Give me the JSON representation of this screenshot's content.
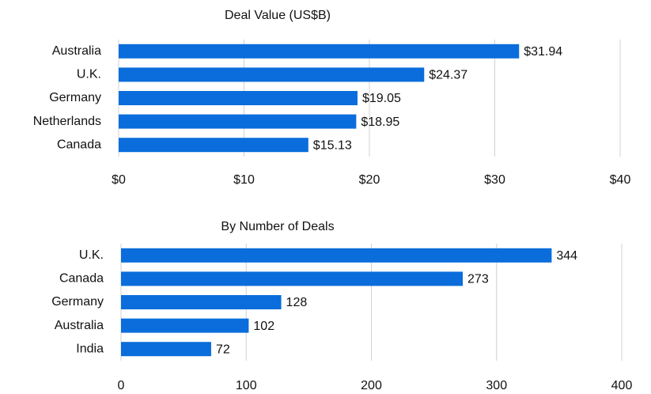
{
  "chart_data": [
    {
      "type": "bar",
      "orientation": "horizontal",
      "title": "Deal Value (US$B)",
      "categories": [
        "Australia",
        "U.K.",
        "Germany",
        "Netherlands",
        "Canada"
      ],
      "values": [
        31.94,
        24.37,
        19.05,
        18.95,
        15.13
      ],
      "value_labels": [
        "$31.94",
        "$24.37",
        "$19.05",
        "$18.95",
        "$15.13"
      ],
      "color": "#0a6ddb",
      "xlim": [
        0,
        40
      ],
      "xticks": [
        {
          "value": 0,
          "label": "$0"
        },
        {
          "value": 10,
          "label": "$10"
        },
        {
          "value": 20,
          "label": "$20"
        },
        {
          "value": 30,
          "label": "$30"
        },
        {
          "value": 40,
          "label": "$40"
        }
      ],
      "grid": true
    },
    {
      "type": "bar",
      "orientation": "horizontal",
      "title": "By Number of Deals",
      "categories": [
        "U.K.",
        "Canada",
        "Germany",
        "Australia",
        "India"
      ],
      "values": [
        344,
        273,
        128,
        102,
        72
      ],
      "color": "#0a6ddb",
      "xlim": [
        0,
        400
      ],
      "xticks": [
        0,
        100,
        200,
        300,
        400
      ],
      "grid": true
    }
  ]
}
